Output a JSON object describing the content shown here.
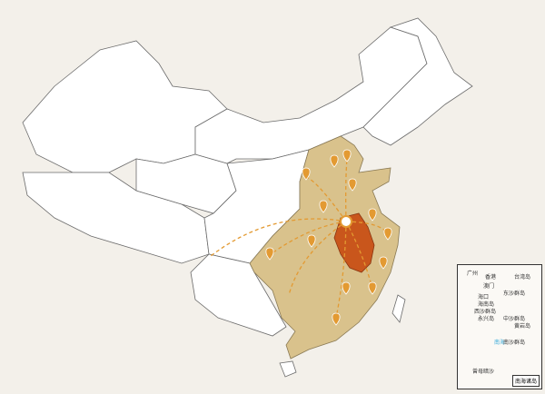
{
  "map": {
    "highlight_color": "#d9c28c",
    "core_color": "#c9561c",
    "arrow_color": "#e39a32",
    "core_region_marker": "origin-circle",
    "pin_icon": "map-pin-icon",
    "pin_count": 13
  },
  "inset": {
    "title": "南海诸岛",
    "labels": [
      "广州",
      "香港",
      "澳门",
      "台湾岛",
      "东沙群岛",
      "海口",
      "海南岛",
      "西沙群岛",
      "永兴岛",
      "中沙群岛",
      "黄岩岛",
      "南海",
      "南沙群岛",
      "曾母暗沙"
    ]
  }
}
